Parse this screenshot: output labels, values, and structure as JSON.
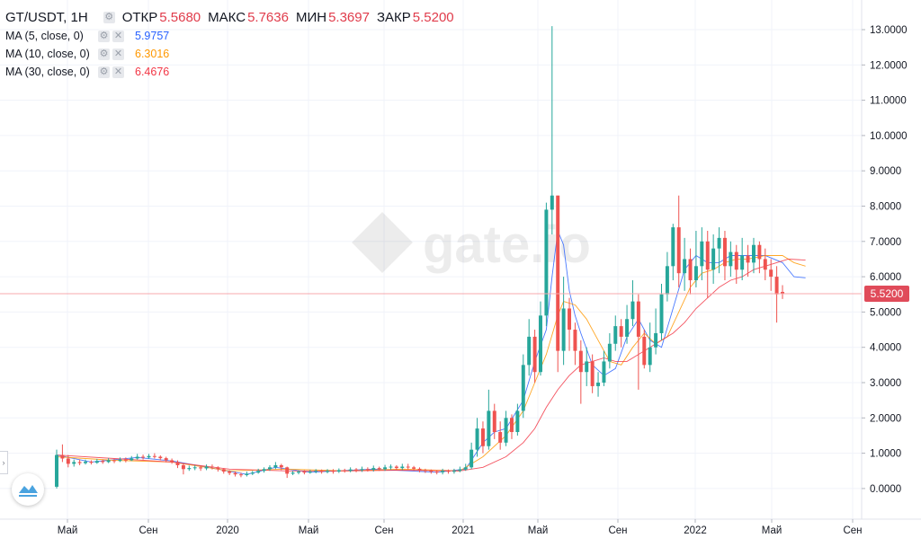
{
  "header": {
    "symbol": "GT/USDT, 1H",
    "open_label": "ОТКР",
    "open_value": "5.5680",
    "high_label": "МАКС",
    "high_value": "5.7636",
    "low_label": "МИН",
    "low_value": "5.3697",
    "close_label": "ЗАКР",
    "close_value": "5.5200"
  },
  "indicators": [
    {
      "name": "MA (5, close, 0)",
      "value": "5.9757",
      "color": "#2962ff"
    },
    {
      "name": "MA (10, close, 0)",
      "value": "6.3016",
      "color": "#ff9800"
    },
    {
      "name": "MA (30, close, 0)",
      "value": "6.4676",
      "color": "#f23645"
    }
  ],
  "icons": {
    "settings": "gear-icon",
    "close": "close-icon",
    "logo": "chart-logo-icon",
    "collapse": "chevron-right-icon"
  },
  "colors": {
    "up": "#26a69a",
    "down": "#ef5350",
    "grid": "#f0f3fa",
    "price_line": "#f7a8ad",
    "price_badge": "#e04b5a"
  },
  "watermark": "gate.io",
  "last_price_label": "5.5200",
  "chart_data": {
    "type": "candlestick",
    "x_tick_labels": [
      "Май",
      "Сен",
      "2020",
      "Май",
      "Сен",
      "2021",
      "Май",
      "Сен",
      "2022",
      "Май",
      "Сен"
    ],
    "y_tick_labels": [
      "0.0000",
      "1.0000",
      "2.0000",
      "3.0000",
      "4.0000",
      "5.0000",
      "6.0000",
      "7.0000",
      "8.0000",
      "9.0000",
      "10.0000",
      "11.0000",
      "12.0000",
      "13.0000"
    ],
    "ylim": [
      -0.7,
      13.6
    ],
    "last_price": 5.52,
    "candles": [
      [
        0.05,
        0.95,
        1.1,
        0.0
      ],
      [
        0.95,
        0.85,
        1.25,
        0.75
      ],
      [
        0.85,
        0.7,
        0.95,
        0.6
      ],
      [
        0.7,
        0.75,
        0.82,
        0.62
      ],
      [
        0.75,
        0.72,
        0.82,
        0.66
      ],
      [
        0.72,
        0.76,
        0.82,
        0.68
      ],
      [
        0.76,
        0.73,
        0.8,
        0.68
      ],
      [
        0.73,
        0.78,
        0.84,
        0.7
      ],
      [
        0.78,
        0.75,
        0.82,
        0.7
      ],
      [
        0.75,
        0.8,
        0.86,
        0.72
      ],
      [
        0.8,
        0.78,
        0.84,
        0.72
      ],
      [
        0.78,
        0.82,
        0.88,
        0.75
      ],
      [
        0.82,
        0.8,
        0.88,
        0.74
      ],
      [
        0.8,
        0.85,
        0.92,
        0.78
      ],
      [
        0.85,
        0.9,
        0.98,
        0.82
      ],
      [
        0.9,
        0.88,
        0.96,
        0.82
      ],
      [
        0.88,
        0.92,
        0.98,
        0.84
      ],
      [
        0.92,
        0.9,
        1.0,
        0.85
      ],
      [
        0.9,
        0.86,
        0.94,
        0.8
      ],
      [
        0.86,
        0.8,
        0.9,
        0.74
      ],
      [
        0.8,
        0.75,
        0.85,
        0.7
      ],
      [
        0.75,
        0.66,
        0.8,
        0.58
      ],
      [
        0.66,
        0.55,
        0.7,
        0.4
      ],
      [
        0.55,
        0.58,
        0.65,
        0.5
      ],
      [
        0.58,
        0.6,
        0.66,
        0.52
      ],
      [
        0.6,
        0.57,
        0.66,
        0.5
      ],
      [
        0.57,
        0.62,
        0.68,
        0.52
      ],
      [
        0.62,
        0.6,
        0.68,
        0.54
      ],
      [
        0.6,
        0.55,
        0.63,
        0.48
      ],
      [
        0.55,
        0.48,
        0.58,
        0.42
      ],
      [
        0.48,
        0.44,
        0.52,
        0.38
      ],
      [
        0.44,
        0.4,
        0.48,
        0.34
      ],
      [
        0.4,
        0.38,
        0.45,
        0.32
      ],
      [
        0.38,
        0.42,
        0.48,
        0.34
      ],
      [
        0.42,
        0.45,
        0.5,
        0.38
      ],
      [
        0.45,
        0.5,
        0.56,
        0.42
      ],
      [
        0.5,
        0.55,
        0.6,
        0.45
      ],
      [
        0.55,
        0.6,
        0.66,
        0.5
      ],
      [
        0.6,
        0.66,
        0.75,
        0.55
      ],
      [
        0.66,
        0.6,
        0.7,
        0.52
      ],
      [
        0.6,
        0.42,
        0.62,
        0.3
      ],
      [
        0.42,
        0.45,
        0.5,
        0.38
      ],
      [
        0.45,
        0.48,
        0.52,
        0.4
      ],
      [
        0.48,
        0.45,
        0.52,
        0.4
      ],
      [
        0.45,
        0.48,
        0.53,
        0.42
      ],
      [
        0.48,
        0.5,
        0.55,
        0.43
      ],
      [
        0.5,
        0.47,
        0.54,
        0.42
      ],
      [
        0.47,
        0.5,
        0.55,
        0.43
      ],
      [
        0.5,
        0.48,
        0.55,
        0.42
      ],
      [
        0.48,
        0.52,
        0.57,
        0.44
      ],
      [
        0.52,
        0.5,
        0.56,
        0.45
      ],
      [
        0.5,
        0.54,
        0.6,
        0.46
      ],
      [
        0.54,
        0.52,
        0.58,
        0.46
      ],
      [
        0.52,
        0.55,
        0.62,
        0.47
      ],
      [
        0.55,
        0.53,
        0.6,
        0.48
      ],
      [
        0.53,
        0.58,
        0.65,
        0.48
      ],
      [
        0.58,
        0.55,
        0.62,
        0.5
      ],
      [
        0.55,
        0.6,
        0.67,
        0.5
      ],
      [
        0.6,
        0.62,
        0.68,
        0.54
      ],
      [
        0.62,
        0.58,
        0.66,
        0.52
      ],
      [
        0.58,
        0.62,
        0.7,
        0.52
      ],
      [
        0.62,
        0.6,
        0.7,
        0.54
      ],
      [
        0.6,
        0.56,
        0.64,
        0.5
      ],
      [
        0.56,
        0.52,
        0.6,
        0.46
      ],
      [
        0.52,
        0.5,
        0.56,
        0.44
      ],
      [
        0.5,
        0.48,
        0.54,
        0.42
      ],
      [
        0.48,
        0.46,
        0.52,
        0.4
      ],
      [
        0.46,
        0.5,
        0.56,
        0.4
      ],
      [
        0.5,
        0.48,
        0.54,
        0.42
      ],
      [
        0.48,
        0.5,
        0.56,
        0.42
      ],
      [
        0.5,
        0.54,
        0.62,
        0.46
      ],
      [
        0.54,
        0.6,
        0.7,
        0.5
      ],
      [
        0.6,
        1.1,
        1.3,
        0.55
      ],
      [
        1.1,
        1.7,
        2.0,
        0.9
      ],
      [
        1.7,
        1.2,
        1.9,
        1.0
      ],
      [
        1.2,
        2.2,
        2.8,
        1.1
      ],
      [
        2.2,
        1.6,
        2.4,
        1.4
      ],
      [
        1.6,
        1.3,
        1.9,
        1.1
      ],
      [
        1.3,
        2.0,
        2.2,
        1.2
      ],
      [
        2.0,
        1.6,
        2.1,
        1.4
      ],
      [
        1.6,
        2.2,
        2.4,
        1.5
      ],
      [
        2.2,
        3.5,
        3.8,
        2.0
      ],
      [
        3.5,
        4.3,
        4.8,
        3.2
      ],
      [
        4.3,
        3.3,
        4.5,
        3.0
      ],
      [
        3.3,
        4.9,
        5.3,
        3.2
      ],
      [
        4.9,
        7.9,
        8.1,
        4.6
      ],
      [
        7.9,
        8.3,
        13.1,
        7.2
      ],
      [
        8.3,
        3.9,
        8.3,
        3.3
      ],
      [
        3.9,
        5.1,
        6.0,
        3.5
      ],
      [
        5.1,
        4.5,
        5.4,
        3.9
      ],
      [
        4.5,
        3.9,
        4.7,
        3.5
      ],
      [
        3.9,
        3.3,
        4.2,
        2.4
      ],
      [
        3.3,
        3.6,
        4.0,
        2.9
      ],
      [
        3.6,
        2.9,
        3.8,
        2.7
      ],
      [
        2.9,
        3.0,
        3.3,
        2.6
      ],
      [
        3.0,
        3.6,
        3.9,
        2.9
      ],
      [
        3.6,
        4.1,
        4.4,
        3.4
      ],
      [
        4.1,
        4.6,
        4.9,
        3.9
      ],
      [
        4.6,
        4.3,
        4.8,
        4.0
      ],
      [
        4.3,
        4.8,
        5.2,
        4.1
      ],
      [
        4.8,
        5.3,
        5.9,
        4.6
      ],
      [
        5.3,
        4.3,
        5.5,
        2.8
      ],
      [
        4.3,
        3.5,
        4.5,
        3.4
      ],
      [
        3.5,
        4.0,
        4.7,
        3.3
      ],
      [
        4.0,
        4.4,
        5.1,
        3.8
      ],
      [
        4.4,
        5.5,
        5.8,
        4.2
      ],
      [
        5.5,
        6.3,
        6.7,
        5.3
      ],
      [
        6.3,
        7.4,
        7.5,
        5.9
      ],
      [
        7.4,
        6.1,
        8.3,
        5.7
      ],
      [
        6.1,
        6.5,
        7.1,
        5.6
      ],
      [
        6.5,
        5.9,
        6.8,
        5.5
      ],
      [
        5.9,
        6.3,
        7.3,
        5.7
      ],
      [
        6.3,
        7.0,
        7.4,
        5.9
      ],
      [
        7.0,
        6.2,
        7.3,
        5.4
      ],
      [
        6.2,
        6.8,
        7.2,
        5.8
      ],
      [
        6.8,
        7.1,
        7.4,
        6.1
      ],
      [
        7.1,
        6.3,
        7.3,
        5.9
      ],
      [
        6.3,
        6.7,
        7.0,
        6.0
      ],
      [
        6.7,
        6.2,
        6.9,
        5.8
      ],
      [
        6.2,
        6.6,
        7.1,
        5.9
      ],
      [
        6.6,
        6.4,
        6.9,
        6.0
      ],
      [
        6.4,
        6.9,
        7.1,
        6.1
      ],
      [
        6.9,
        6.5,
        7.0,
        6.1
      ],
      [
        6.5,
        6.2,
        6.8,
        5.9
      ],
      [
        6.2,
        6.0,
        6.5,
        5.6
      ],
      [
        6.0,
        5.5,
        6.3,
        4.7
      ],
      [
        5.57,
        5.52,
        5.76,
        5.37
      ]
    ],
    "ma5": [
      [
        0,
        0.95
      ],
      [
        6,
        0.75
      ],
      [
        14,
        0.88
      ],
      [
        20,
        0.78
      ],
      [
        28,
        0.55
      ],
      [
        33,
        0.4
      ],
      [
        38,
        0.6
      ],
      [
        44,
        0.46
      ],
      [
        55,
        0.55
      ],
      [
        66,
        0.46
      ],
      [
        71,
        0.55
      ],
      [
        74,
        1.3
      ],
      [
        76,
        1.6
      ],
      [
        78,
        1.7
      ],
      [
        81,
        2.5
      ],
      [
        83,
        3.6
      ],
      [
        85,
        4.5
      ],
      [
        86,
        6.0
      ],
      [
        87,
        7.3
      ],
      [
        88,
        6.9
      ],
      [
        89,
        5.6
      ],
      [
        90,
        4.9
      ],
      [
        91,
        4.4
      ],
      [
        93,
        3.5
      ],
      [
        95,
        3.2
      ],
      [
        97,
        3.4
      ],
      [
        99,
        4.3
      ],
      [
        101,
        4.8
      ],
      [
        103,
        4.2
      ],
      [
        105,
        4.0
      ],
      [
        107,
        5.1
      ],
      [
        109,
        6.2
      ],
      [
        111,
        6.6
      ],
      [
        113,
        6.4
      ],
      [
        115,
        6.4
      ],
      [
        117,
        6.6
      ],
      [
        120,
        6.6
      ],
      [
        123,
        6.6
      ],
      [
        126,
        6.4
      ],
      [
        128,
        6.0
      ],
      [
        130,
        5.97
      ]
    ],
    "ma10": [
      [
        0,
        0.9
      ],
      [
        10,
        0.8
      ],
      [
        20,
        0.75
      ],
      [
        30,
        0.5
      ],
      [
        40,
        0.55
      ],
      [
        50,
        0.5
      ],
      [
        60,
        0.55
      ],
      [
        70,
        0.5
      ],
      [
        74,
        0.9
      ],
      [
        78,
        1.5
      ],
      [
        81,
        2.2
      ],
      [
        83,
        3.0
      ],
      [
        85,
        3.8
      ],
      [
        87,
        4.9
      ],
      [
        88,
        5.3
      ],
      [
        90,
        5.2
      ],
      [
        92,
        4.8
      ],
      [
        94,
        4.2
      ],
      [
        96,
        3.6
      ],
      [
        98,
        3.5
      ],
      [
        100,
        4.0
      ],
      [
        102,
        4.4
      ],
      [
        104,
        4.1
      ],
      [
        106,
        4.3
      ],
      [
        108,
        5.0
      ],
      [
        110,
        5.7
      ],
      [
        112,
        6.1
      ],
      [
        114,
        6.2
      ],
      [
        116,
        6.4
      ],
      [
        118,
        6.5
      ],
      [
        120,
        6.5
      ],
      [
        123,
        6.6
      ],
      [
        126,
        6.6
      ],
      [
        128,
        6.4
      ],
      [
        130,
        6.3
      ]
    ],
    "ma30": [
      [
        0,
        0.95
      ],
      [
        10,
        0.85
      ],
      [
        20,
        0.75
      ],
      [
        30,
        0.55
      ],
      [
        40,
        0.5
      ],
      [
        50,
        0.5
      ],
      [
        60,
        0.52
      ],
      [
        70,
        0.5
      ],
      [
        74,
        0.6
      ],
      [
        78,
        0.9
      ],
      [
        81,
        1.3
      ],
      [
        83,
        1.7
      ],
      [
        85,
        2.3
      ],
      [
        87,
        2.8
      ],
      [
        89,
        3.2
      ],
      [
        91,
        3.5
      ],
      [
        93,
        3.6
      ],
      [
        95,
        3.7
      ],
      [
        97,
        3.6
      ],
      [
        99,
        3.6
      ],
      [
        101,
        3.8
      ],
      [
        103,
        4.0
      ],
      [
        105,
        4.2
      ],
      [
        107,
        4.4
      ],
      [
        109,
        4.7
      ],
      [
        111,
        5.1
      ],
      [
        113,
        5.4
      ],
      [
        115,
        5.7
      ],
      [
        117,
        5.9
      ],
      [
        119,
        6.0
      ],
      [
        121,
        6.2
      ],
      [
        123,
        6.3
      ],
      [
        125,
        6.4
      ],
      [
        127,
        6.5
      ],
      [
        130,
        6.47
      ]
    ]
  }
}
